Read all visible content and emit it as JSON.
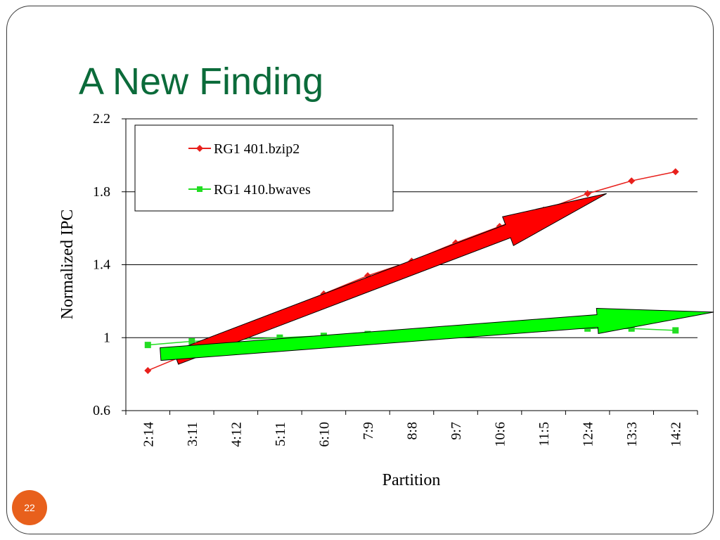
{
  "slide": {
    "title": "A New Finding",
    "page_number": "22"
  },
  "colors": {
    "title": "#0b6b3a",
    "series_1": "#e8201c",
    "series_2": "#22dd22",
    "arrow_red": "#ff0000",
    "arrow_green": "#00ff00",
    "badge": "#e8601c"
  },
  "chart_data": {
    "type": "line",
    "xlabel": "Partition",
    "ylabel": "Normalized IPC",
    "ylim": [
      0.6,
      2.2
    ],
    "yticks": [
      "0.6",
      "1",
      "1.4",
      "1.8",
      "2.2"
    ],
    "grid": "horizontal",
    "legend_position": "top-left",
    "categories": [
      "2:14",
      "3:11",
      "4:12",
      "5:11",
      "6:10",
      "7:9",
      "8:8",
      "9:7",
      "10:6",
      "11:5",
      "12:4",
      "13:3",
      "14:2"
    ],
    "series": [
      {
        "name": "RG1 401.bzip2",
        "marker": "diamond",
        "values": [
          0.82,
          0.92,
          1.03,
          1.13,
          1.24,
          1.34,
          1.42,
          1.52,
          1.61,
          1.7,
          1.79,
          1.86,
          1.91
        ]
      },
      {
        "name": "RG1 410.bwaves",
        "marker": "square",
        "values": [
          0.96,
          0.98,
          0.99,
          1.0,
          1.01,
          1.02,
          1.03,
          1.04,
          1.05,
          1.05,
          1.05,
          1.05,
          1.04
        ]
      }
    ]
  }
}
